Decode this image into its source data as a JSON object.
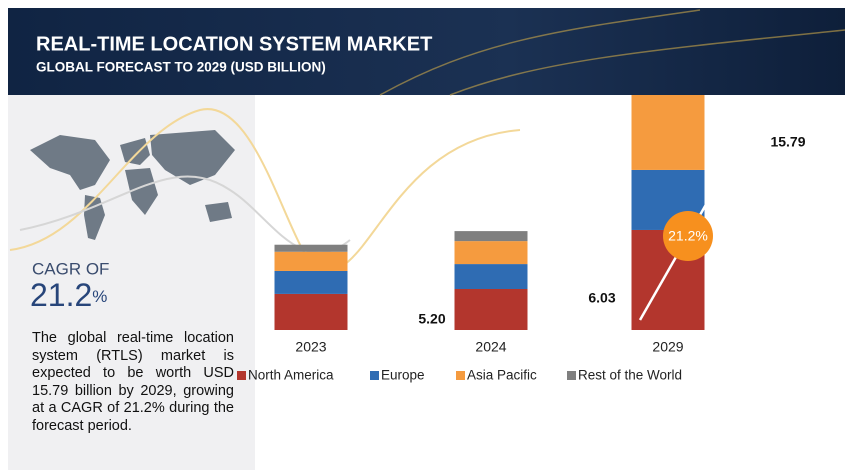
{
  "chart_data": {
    "type": "stacked-bar",
    "title": "REAL-TIME LOCATION SYSTEM MARKET",
    "subtitle": "GLOBAL FORECAST TO 2029 (USD BILLION)",
    "categories": [
      "2023",
      "2024",
      "2029"
    ],
    "series": [
      {
        "name": "North America",
        "color": "#b3362d",
        "values": [
          2.2,
          2.5,
          6.1
        ]
      },
      {
        "name": "Europe",
        "color": "#2f6cb3",
        "values": [
          1.4,
          1.52,
          3.66
        ]
      },
      {
        "name": "Asia Pacific",
        "color": "#f59b3f",
        "values": [
          1.17,
          1.4,
          5.2
        ]
      },
      {
        "name": "Rest of the World",
        "color": "#7f7f7f",
        "values": [
          0.43,
          0.61,
          0.83
        ]
      }
    ],
    "totals": {
      "values": [
        5.2,
        6.03,
        15.79
      ],
      "value_labels": [
        "5.20",
        "6.03",
        "15.79"
      ]
    },
    "cagr": {
      "label": "CAGR OF",
      "number": "21.2",
      "unit": "%",
      "bubble": "21.2%"
    },
    "description": "The global real-time location system (RTLS) market is expected to be worth USD 15.79 billion by 2029, growing at a CAGR of 21.2% during the forecast period."
  }
}
